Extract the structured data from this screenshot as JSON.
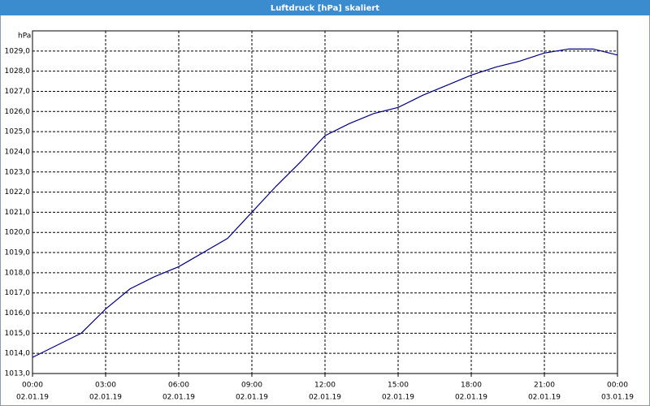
{
  "chart_data": {
    "type": "line",
    "title": "Luftdruck [hPa] skaliert",
    "y_unit": "hPa",
    "x": [
      0,
      1,
      2,
      3,
      4,
      5,
      6,
      7,
      8,
      9,
      10,
      11,
      12,
      13,
      14,
      15,
      16,
      17,
      18,
      19,
      20,
      21,
      22,
      23,
      24
    ],
    "series": [
      {
        "name": "Luftdruck",
        "color": "#000080",
        "values": [
          1013.8,
          1014.4,
          1015.0,
          1016.2,
          1017.2,
          1017.8,
          1018.3,
          1019.0,
          1019.7,
          1021.0,
          1022.3,
          1023.5,
          1024.8,
          1025.4,
          1025.9,
          1026.2,
          1026.8,
          1027.3,
          1027.8,
          1028.2,
          1028.5,
          1028.9,
          1029.1,
          1029.1,
          1028.8
        ]
      }
    ],
    "xlim": [
      0,
      24
    ],
    "xticks": [
      {
        "value": 0,
        "label": "00:00",
        "date": "02.01.19"
      },
      {
        "value": 3,
        "label": "03:00",
        "date": "02.01.19"
      },
      {
        "value": 6,
        "label": "06:00",
        "date": "02.01.19"
      },
      {
        "value": 9,
        "label": "09:00",
        "date": "02.01.19"
      },
      {
        "value": 12,
        "label": "12:00",
        "date": "02.01.19"
      },
      {
        "value": 15,
        "label": "15:00",
        "date": "02.01.19"
      },
      {
        "value": 18,
        "label": "18:00",
        "date": "02.01.19"
      },
      {
        "value": 21,
        "label": "21:00",
        "date": "02.01.19"
      },
      {
        "value": 24,
        "label": "00:00",
        "date": "03.01.19"
      }
    ],
    "ylim": [
      1013,
      1030
    ],
    "yticks": [
      {
        "value": 1013,
        "label": "1013,0"
      },
      {
        "value": 1014,
        "label": "1014,0"
      },
      {
        "value": 1015,
        "label": "1015,0"
      },
      {
        "value": 1016,
        "label": "1016,0"
      },
      {
        "value": 1017,
        "label": "1017,0"
      },
      {
        "value": 1018,
        "label": "1018,0"
      },
      {
        "value": 1019,
        "label": "1019,0"
      },
      {
        "value": 1020,
        "label": "1020,0"
      },
      {
        "value": 1021,
        "label": "1021,0"
      },
      {
        "value": 1022,
        "label": "1022,0"
      },
      {
        "value": 1023,
        "label": "1023,0"
      },
      {
        "value": 1024,
        "label": "1024,0"
      },
      {
        "value": 1025,
        "label": "1025,0"
      },
      {
        "value": 1026,
        "label": "1026,0"
      },
      {
        "value": 1027,
        "label": "1027,0"
      },
      {
        "value": 1028,
        "label": "1028,0"
      },
      {
        "value": 1029,
        "label": "1029,0"
      }
    ],
    "grid": true
  }
}
